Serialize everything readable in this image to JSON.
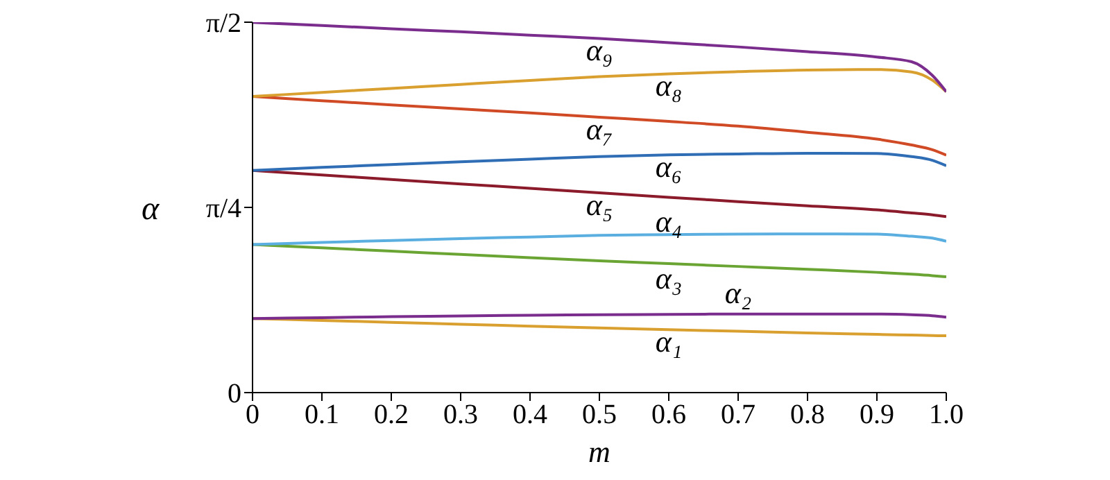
{
  "chart_data": {
    "type": "line",
    "xlabel": "m",
    "ylabel": "α",
    "x": [
      0,
      0.1,
      0.2,
      0.3,
      0.4,
      0.5,
      0.6,
      0.7,
      0.8,
      0.9,
      0.95,
      0.98,
      1.0
    ],
    "xlim": [
      0,
      1
    ],
    "xticks": [
      0,
      0.1,
      0.2,
      0.3,
      0.4,
      0.5,
      0.6,
      0.7,
      0.8,
      0.9,
      {
        "value": 1,
        "label": "1.0"
      }
    ],
    "ylim": [
      0,
      1.5708
    ],
    "yticks": [
      0,
      {
        "value": 0.7854,
        "label": "π/4"
      },
      {
        "value": 1.5708,
        "label": "π/2"
      }
    ],
    "grid": false,
    "legend": false,
    "marker": "none",
    "line_style": "solid",
    "series": [
      {
        "name": "α₁",
        "color": "#d9a030",
        "values": [
          0.314,
          0.306,
          0.298,
          0.29,
          0.282,
          0.274,
          0.267,
          0.26,
          0.253,
          0.247,
          0.244,
          0.242,
          0.241
        ]
      },
      {
        "name": "α₂",
        "color": "#7b2d8e",
        "values": [
          0.314,
          0.318,
          0.322,
          0.325,
          0.328,
          0.33,
          0.332,
          0.333,
          0.333,
          0.333,
          0.33,
          0.326,
          0.32
        ]
      },
      {
        "name": "α₃",
        "color": "#6aa534",
        "values": [
          0.628,
          0.614,
          0.6,
          0.586,
          0.572,
          0.559,
          0.547,
          0.535,
          0.523,
          0.51,
          0.502,
          0.496,
          0.491
        ]
      },
      {
        "name": "α₄",
        "color": "#5aafe0",
        "values": [
          0.628,
          0.637,
          0.645,
          0.653,
          0.66,
          0.667,
          0.67,
          0.672,
          0.673,
          0.672,
          0.663,
          0.655,
          0.642
        ]
      },
      {
        "name": "α₅",
        "color": "#8b1a2a",
        "values": [
          0.942,
          0.923,
          0.904,
          0.885,
          0.866,
          0.847,
          0.828,
          0.81,
          0.792,
          0.775,
          0.762,
          0.754,
          0.746
        ]
      },
      {
        "name": "α₆",
        "color": "#2f6db5",
        "values": [
          0.942,
          0.955,
          0.967,
          0.979,
          0.99,
          1.001,
          1.008,
          1.012,
          1.015,
          1.014,
          1.001,
          0.985,
          0.962
        ]
      },
      {
        "name": "α₇",
        "color": "#d04a25",
        "values": [
          1.256,
          1.238,
          1.22,
          1.203,
          1.186,
          1.168,
          1.15,
          1.13,
          1.104,
          1.075,
          1.05,
          1.03,
          1.007
        ]
      },
      {
        "name": "α₈",
        "color": "#d9a030",
        "values": [
          1.256,
          1.273,
          1.29,
          1.307,
          1.324,
          1.34,
          1.352,
          1.361,
          1.368,
          1.37,
          1.36,
          1.325,
          1.276
        ]
      },
      {
        "name": "α₉",
        "color": "#7b2d8e",
        "values": [
          1.57,
          1.557,
          1.543,
          1.53,
          1.516,
          1.502,
          1.484,
          1.466,
          1.446,
          1.423,
          1.403,
          1.345,
          1.276
        ]
      }
    ]
  }
}
